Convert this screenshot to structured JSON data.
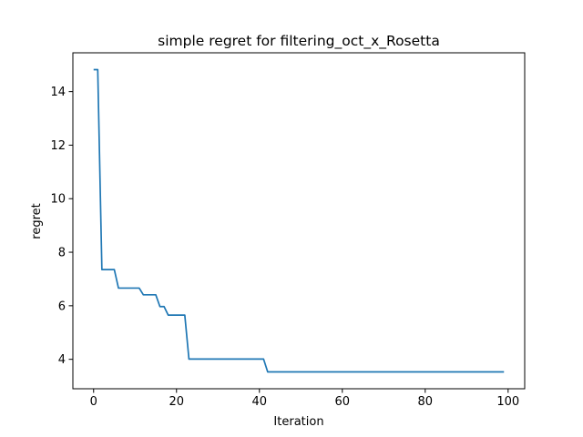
{
  "chart_data": {
    "type": "line",
    "title": "simple regret for filtering_oct_x_Rosetta",
    "xlabel": "Iteration",
    "ylabel": "regret",
    "xlim": [
      -5,
      104
    ],
    "ylim": [
      2.9,
      15.45
    ],
    "xticks": [
      0,
      20,
      40,
      60,
      80,
      100
    ],
    "yticks": [
      4,
      6,
      8,
      10,
      12,
      14
    ],
    "grid": false,
    "legend": "none",
    "series": [
      {
        "color": "#1f77b4",
        "step_breaks": [
          {
            "x": 0,
            "y": 14.82
          },
          {
            "x": 1,
            "y": 14.82
          },
          {
            "x": 2,
            "y": 7.35
          },
          {
            "x": 5,
            "y": 7.35
          },
          {
            "x": 6,
            "y": 6.66
          },
          {
            "x": 11,
            "y": 6.66
          },
          {
            "x": 12,
            "y": 6.41
          },
          {
            "x": 15,
            "y": 6.41
          },
          {
            "x": 16,
            "y": 5.97
          },
          {
            "x": 17,
            "y": 5.97
          },
          {
            "x": 18,
            "y": 5.65
          },
          {
            "x": 22,
            "y": 5.65
          },
          {
            "x": 23,
            "y": 4.01
          },
          {
            "x": 41,
            "y": 4.01
          },
          {
            "x": 42,
            "y": 3.53
          },
          {
            "x": 99,
            "y": 3.53
          }
        ]
      }
    ]
  }
}
